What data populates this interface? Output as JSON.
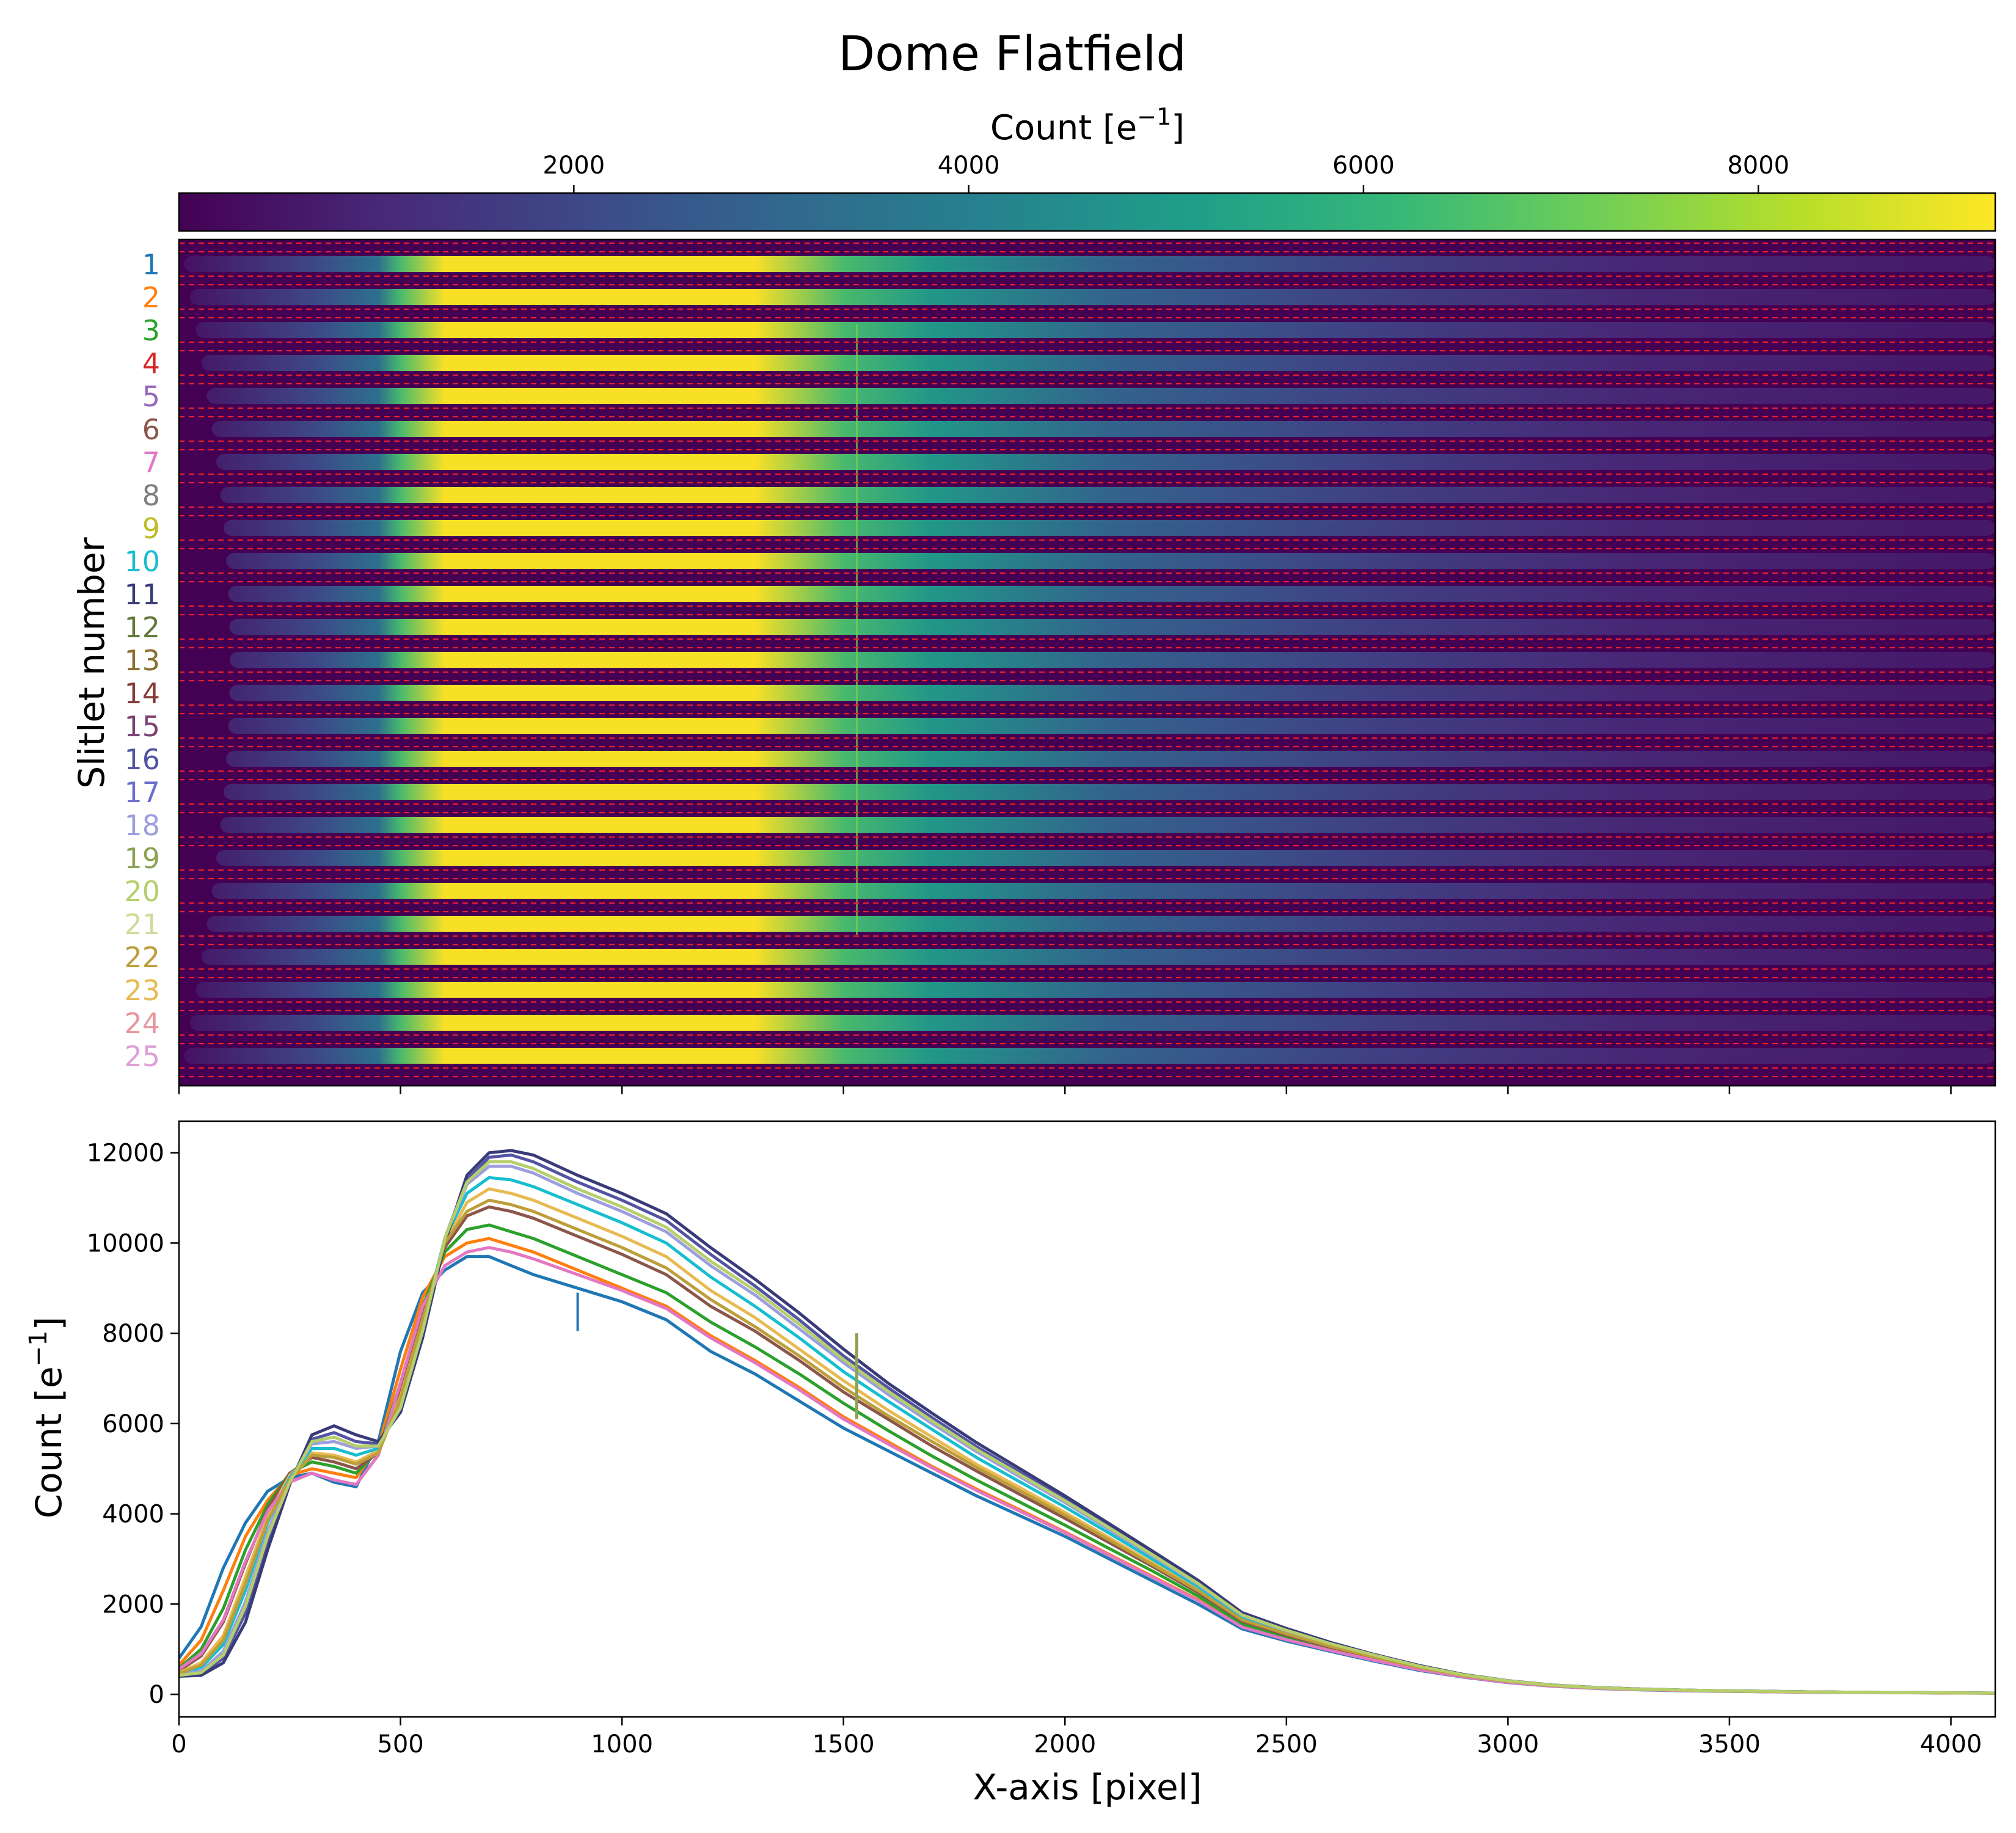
{
  "title": "Dome Flatfield",
  "colors": {
    "viridis": [
      "#440154",
      "#482878",
      "#3e4989",
      "#31688e",
      "#26828e",
      "#1f9e89",
      "#35b779",
      "#6ece58",
      "#b5de2b",
      "#fde725"
    ],
    "separator_line": "#e8202a",
    "slitlets": [
      "#1f77b4",
      "#ff7f0e",
      "#2ca02c",
      "#d62728",
      "#9467bd",
      "#8c564b",
      "#e377c2",
      "#7f7f7f",
      "#bcbd22",
      "#17becf",
      "#393b79",
      "#637939",
      "#8c6d31",
      "#843c39",
      "#7b4173",
      "#5254a3",
      "#6b6ecf",
      "#9c9ede",
      "#8ca252",
      "#b5cf6b",
      "#cedb9c",
      "#bd9e39",
      "#e7ba52",
      "#e7969c",
      "#de9ed6"
    ]
  },
  "chart_data": [
    {
      "type": "heatmap",
      "name": "colorbar",
      "label": "Count [e",
      "label_exponent": "−1",
      "label_suffix": "]",
      "range": [
        0,
        9200
      ],
      "ticks": [
        2000,
        4000,
        6000,
        8000
      ],
      "tick_labels": [
        "2000",
        "4000",
        "6000",
        "8000"
      ]
    },
    {
      "type": "heatmap",
      "title": "Dome Flatfield",
      "ylabel": "Slitlet number",
      "xlim": [
        0,
        4100
      ],
      "x_ticks": [
        0,
        500,
        1000,
        1500,
        2000,
        2500,
        3000,
        3500,
        4000
      ],
      "x_tick_labels_visible": false,
      "slitlet_labels": [
        "1",
        "2",
        "3",
        "4",
        "5",
        "6",
        "7",
        "8",
        "9",
        "10",
        "11",
        "12",
        "13",
        "14",
        "15",
        "16",
        "17",
        "18",
        "19",
        "20",
        "21",
        "22",
        "23",
        "24",
        "25"
      ],
      "separators": "dashed",
      "band_profile_x": [
        0,
        300,
        450,
        500,
        600,
        1300,
        1500,
        1700,
        2100,
        2700,
        3300,
        4100
      ],
      "band_profile_count": [
        400,
        2000,
        3500,
        6500,
        9200,
        9200,
        6500,
        5000,
        3000,
        1800,
        1000,
        600
      ]
    },
    {
      "type": "line",
      "xlabel": "X-axis [pixel]",
      "ylabel": "Count [e",
      "ylabel_exponent": "−1",
      "ylabel_suffix": "]",
      "xlim": [
        0,
        4100
      ],
      "ylim": [
        -500,
        12700
      ],
      "x_ticks": [
        0,
        500,
        1000,
        1500,
        2000,
        2500,
        3000,
        3500,
        4000
      ],
      "x_tick_labels": [
        "0",
        "500",
        "1000",
        "1500",
        "2000",
        "2500",
        "3000",
        "3500",
        "4000"
      ],
      "y_ticks": [
        0,
        2000,
        4000,
        6000,
        8000,
        10000,
        12000
      ],
      "y_tick_labels": [
        "0",
        "2000",
        "4000",
        "6000",
        "8000",
        "10000",
        "12000"
      ],
      "grid": false,
      "spike": {
        "x": 1530,
        "y": 8000
      },
      "x": [
        0,
        50,
        100,
        150,
        200,
        250,
        300,
        350,
        400,
        450,
        500,
        550,
        600,
        650,
        700,
        750,
        800,
        900,
        1000,
        1100,
        1200,
        1300,
        1400,
        1500,
        1600,
        1700,
        1800,
        1900,
        2000,
        2100,
        2200,
        2300,
        2400,
        2500,
        2600,
        2700,
        2800,
        2900,
        3000,
        3100,
        3200,
        3300,
        3400,
        3500,
        3600,
        3700,
        3800,
        3900,
        4000,
        4100
      ],
      "series": [
        {
          "values": [
            800,
            1500,
            2800,
            3800,
            4500,
            4800,
            4900,
            4700,
            4600,
            5600,
            7600,
            8900,
            9400,
            9700,
            9700,
            9500,
            9300,
            9000,
            8700,
            8300,
            7600,
            7100,
            6500,
            5900,
            5400,
            4900,
            4400,
            3950,
            3500,
            3000,
            2500,
            2000,
            1450,
            1180,
            950,
            730,
            530,
            380,
            260,
            180,
            130,
            100,
            80,
            65,
            55,
            45,
            40,
            35,
            30,
            25
          ]
        },
        {
          "values": [
            650,
            1200,
            2300,
            3500,
            4300,
            4850,
            5000,
            4900,
            4800,
            5500,
            7200,
            8800,
            9700,
            10000,
            10100,
            9950,
            9800,
            9400,
            9000,
            8600,
            7950,
            7400,
            6800,
            6150,
            5600,
            5050,
            4550,
            4080,
            3600,
            3100,
            2600,
            2100,
            1500,
            1220,
            980,
            760,
            550,
            390,
            270,
            185,
            135,
            105,
            85,
            70,
            58,
            48,
            42,
            36,
            31,
            26
          ]
        },
        {
          "values": [
            580,
            1000,
            1900,
            3200,
            4200,
            4900,
            5150,
            5050,
            4900,
            5400,
            6900,
            8600,
            9800,
            10300,
            10400,
            10250,
            10100,
            9700,
            9300,
            8900,
            8250,
            7700,
            7100,
            6450,
            5850,
            5280,
            4750,
            4250,
            3750,
            3230,
            2720,
            2180,
            1560,
            1270,
            1010,
            790,
            570,
            400,
            280,
            190,
            140,
            108,
            88,
            72,
            60,
            50,
            43,
            37,
            32,
            27
          ]
        },
        {
          "values": [
            520,
            850,
            1600,
            2900,
            4100,
            4900,
            5250,
            5150,
            5000,
            5350,
            6700,
            8400,
            9900,
            10600,
            10800,
            10700,
            10550,
            10150,
            9750,
            9300,
            8600,
            8050,
            7400,
            6700,
            6100,
            5500,
            4950,
            4420,
            3900,
            3360,
            2820,
            2260,
            1620,
            1310,
            1040,
            810,
            590,
            410,
            285,
            195,
            142,
            110,
            90,
            74,
            61,
            51,
            44,
            38,
            32,
            27
          ]
        },
        {
          "values": [
            480,
            700,
            1300,
            2600,
            3950,
            4850,
            5350,
            5300,
            5150,
            5400,
            6600,
            8300,
            10000,
            10900,
            11200,
            11100,
            10950,
            10550,
            10150,
            9700,
            8950,
            8350,
            7650,
            6950,
            6300,
            5700,
            5100,
            4570,
            4030,
            3470,
            2900,
            2330,
            1670,
            1350,
            1070,
            830,
            600,
            420,
            290,
            198,
            145,
            112,
            92,
            75,
            62,
            52,
            45,
            38,
            33,
            28
          ]
        },
        {
          "values": [
            450,
            600,
            1100,
            2300,
            3800,
            4800,
            5450,
            5450,
            5300,
            5450,
            6500,
            8200,
            10100,
            11100,
            11450,
            11400,
            11250,
            10850,
            10450,
            10000,
            9250,
            8600,
            7900,
            7150,
            6500,
            5870,
            5250,
            4700,
            4150,
            3570,
            2980,
            2390,
            1710,
            1380,
            1090,
            850,
            610,
            425,
            295,
            200,
            147,
            114,
            93,
            76,
            63,
            53,
            46,
            39,
            33,
            28
          ]
        },
        {
          "values": [
            430,
            520,
            950,
            2050,
            3600,
            4750,
            5550,
            5600,
            5450,
            5500,
            6400,
            8100,
            10100,
            11300,
            11700,
            11700,
            11550,
            11100,
            10700,
            10250,
            9500,
            8850,
            8100,
            7350,
            6650,
            6000,
            5380,
            4810,
            4250,
            3650,
            3050,
            2440,
            1750,
            1410,
            1110,
            860,
            620,
            430,
            298,
            202,
            148,
            115,
            94,
            77,
            63,
            53,
            46,
            39,
            33,
            28
          ]
        },
        {
          "values": [
            410,
            450,
            800,
            1800,
            3400,
            4700,
            5650,
            5800,
            5600,
            5550,
            6300,
            8000,
            10100,
            11400,
            11900,
            11950,
            11800,
            11350,
            10950,
            10500,
            9750,
            9050,
            8300,
            7500,
            6800,
            6130,
            5490,
            4910,
            4330,
            3720,
            3110,
            2490,
            1780,
            1440,
            1130,
            870,
            630,
            435,
            300,
            205,
            150,
            116,
            95,
            78,
            64,
            54,
            46,
            39,
            33,
            28
          ]
        },
        {
          "values": [
            400,
            420,
            700,
            1600,
            3200,
            4650,
            5750,
            5950,
            5750,
            5600,
            6250,
            7900,
            10000,
            11500,
            12000,
            12050,
            11950,
            11500,
            11100,
            10650,
            9900,
            9200,
            8450,
            7650,
            6900,
            6230,
            5580,
            4990,
            4400,
            3780,
            3160,
            2530,
            1810,
            1460,
            1150,
            880,
            640,
            440,
            303,
            207,
            151,
            117,
            95,
            78,
            64,
            54,
            46,
            39,
            33,
            28
          ]
        },
        {
          "values": [
            560,
            900,
            1650,
            2950,
            4050,
            4700,
            4900,
            4750,
            4650,
            5300,
            6900,
            8600,
            9500,
            9800,
            9900,
            9800,
            9650,
            9300,
            8950,
            8550,
            7900,
            7350,
            6750,
            6100,
            5550,
            5020,
            4520,
            4050,
            3580,
            3080,
            2580,
            2080,
            1490,
            1210,
            970,
            750,
            545,
            385,
            265,
            182,
            133,
            103,
            83,
            68,
            57,
            47,
            41,
            35,
            30,
            25
          ]
        },
        {
          "values": [
            460,
            650,
            1200,
            2450,
            3850,
            4750,
            5300,
            5250,
            5100,
            5350,
            6550,
            8300,
            10000,
            10700,
            10950,
            10850,
            10700,
            10300,
            9900,
            9450,
            8750,
            8150,
            7500,
            6800,
            6180,
            5600,
            5030,
            4500,
            3970,
            3420,
            2860,
            2300,
            1650,
            1340,
            1060,
            820,
            595,
            415,
            288,
            197,
            144,
            111,
            91,
            74,
            61,
            51,
            44,
            38,
            32,
            27
          ]
        },
        {
          "values": [
            420,
            480,
            870,
            1950,
            3500,
            4700,
            5600,
            5700,
            5500,
            5500,
            6350,
            8050,
            10100,
            11350,
            11800,
            11800,
            11650,
            11200,
            10800,
            10350,
            9600,
            8950,
            8200,
            7420,
            6720,
            6060,
            5430,
            4860,
            4290,
            3690,
            3080,
            2460,
            1760,
            1420,
            1120,
            865,
            625,
            432,
            299,
            204,
            149,
            115,
            94,
            77,
            63,
            53,
            46,
            39,
            33,
            28
          ]
        }
      ]
    }
  ]
}
